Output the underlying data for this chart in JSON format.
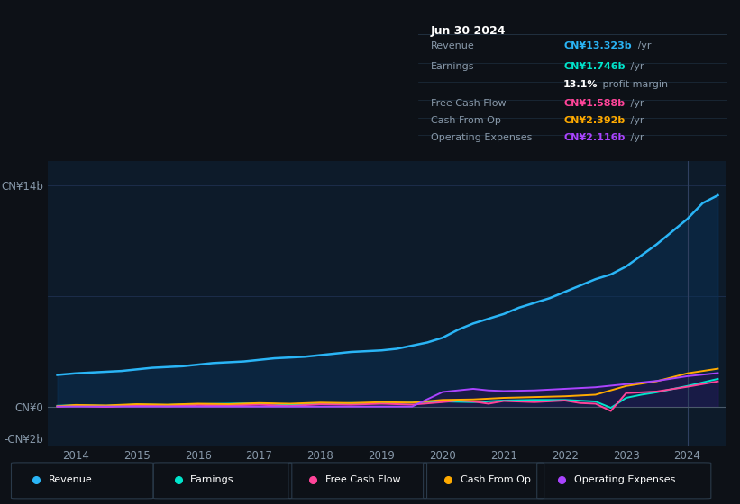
{
  "bg_color": "#0d1117",
  "plot_bg_color": "#0d1b2a",
  "grid_color": "#1e3050",
  "text_color": "#8899aa",
  "title_color": "#ffffff",
  "revenue_color": "#2ab5f6",
  "earnings_color": "#00e5cc",
  "fcf_color": "#ff4499",
  "cashfromop_color": "#ffaa00",
  "opex_color": "#aa44ff",
  "revenue_fill_color": "#0a3a5a",
  "opex_fill_color": "#2a1a4a",
  "legend_items": [
    {
      "label": "Revenue",
      "color": "#2ab5f6"
    },
    {
      "label": "Earnings",
      "color": "#00e5cc"
    },
    {
      "label": "Free Cash Flow",
      "color": "#ff4499"
    },
    {
      "label": "Cash From Op",
      "color": "#ffaa00"
    },
    {
      "label": "Operating Expenses",
      "color": "#aa44ff"
    }
  ],
  "xlabel_years": [
    2014,
    2015,
    2016,
    2017,
    2018,
    2019,
    2020,
    2021,
    2022,
    2023,
    2024
  ],
  "revenue": {
    "x": [
      2013.7,
      2014.0,
      2014.25,
      2014.5,
      2014.75,
      2015.0,
      2015.25,
      2015.5,
      2015.75,
      2016.0,
      2016.25,
      2016.5,
      2016.75,
      2017.0,
      2017.25,
      2017.5,
      2017.75,
      2018.0,
      2018.25,
      2018.5,
      2018.75,
      2019.0,
      2019.25,
      2019.5,
      2019.75,
      2020.0,
      2020.25,
      2020.5,
      2020.75,
      2021.0,
      2021.25,
      2021.5,
      2021.75,
      2022.0,
      2022.25,
      2022.5,
      2022.75,
      2023.0,
      2023.25,
      2023.5,
      2023.75,
      2024.0,
      2024.25,
      2024.5
    ],
    "y": [
      2.0,
      2.1,
      2.15,
      2.2,
      2.25,
      2.35,
      2.45,
      2.5,
      2.55,
      2.65,
      2.75,
      2.8,
      2.85,
      2.95,
      3.05,
      3.1,
      3.15,
      3.25,
      3.35,
      3.45,
      3.5,
      3.55,
      3.65,
      3.85,
      4.05,
      4.35,
      4.85,
      5.25,
      5.55,
      5.85,
      6.25,
      6.55,
      6.85,
      7.25,
      7.65,
      8.05,
      8.35,
      8.85,
      9.55,
      10.25,
      11.05,
      11.85,
      12.85,
      13.35
    ]
  },
  "earnings": {
    "x": [
      2013.7,
      2014.0,
      2014.5,
      2015.0,
      2015.5,
      2016.0,
      2016.5,
      2017.0,
      2017.5,
      2018.0,
      2018.5,
      2019.0,
      2019.5,
      2020.0,
      2020.5,
      2021.0,
      2021.5,
      2022.0,
      2022.5,
      2022.75,
      2023.0,
      2023.25,
      2023.5,
      2024.0,
      2024.5
    ],
    "y": [
      0.05,
      0.08,
      0.05,
      0.12,
      0.1,
      0.15,
      0.18,
      0.2,
      0.12,
      0.18,
      0.22,
      0.2,
      0.25,
      0.32,
      0.28,
      0.38,
      0.42,
      0.42,
      0.32,
      -0.08,
      0.55,
      0.75,
      0.9,
      1.3,
      1.746
    ]
  },
  "fcf": {
    "x": [
      2013.7,
      2014.0,
      2014.5,
      2015.0,
      2015.5,
      2016.0,
      2016.5,
      2017.0,
      2017.5,
      2018.0,
      2018.5,
      2019.0,
      2019.5,
      2020.0,
      2020.25,
      2020.5,
      2020.75,
      2021.0,
      2021.5,
      2022.0,
      2022.25,
      2022.5,
      2022.75,
      2023.0,
      2023.5,
      2024.0,
      2024.5
    ],
    "y": [
      0.0,
      0.05,
      -0.02,
      0.08,
      0.02,
      0.1,
      0.07,
      0.12,
      0.03,
      0.15,
      0.12,
      0.18,
      0.12,
      0.28,
      0.38,
      0.32,
      0.18,
      0.35,
      0.28,
      0.38,
      0.22,
      0.18,
      -0.28,
      0.85,
      0.95,
      1.25,
      1.588
    ]
  },
  "cashfromop": {
    "x": [
      2013.7,
      2014.0,
      2014.5,
      2015.0,
      2015.5,
      2016.0,
      2016.5,
      2017.0,
      2017.5,
      2018.0,
      2018.5,
      2019.0,
      2019.5,
      2020.0,
      2020.5,
      2021.0,
      2021.5,
      2022.0,
      2022.5,
      2023.0,
      2023.5,
      2024.0,
      2024.5
    ],
    "y": [
      0.02,
      0.1,
      0.07,
      0.15,
      0.12,
      0.18,
      0.15,
      0.22,
      0.18,
      0.25,
      0.22,
      0.28,
      0.25,
      0.42,
      0.45,
      0.55,
      0.6,
      0.65,
      0.75,
      1.3,
      1.6,
      2.1,
      2.392
    ]
  },
  "opex": {
    "x": [
      2013.7,
      2019.45,
      2019.5,
      2020.0,
      2020.25,
      2020.5,
      2020.75,
      2021.0,
      2021.5,
      2022.0,
      2022.5,
      2023.0,
      2023.5,
      2024.0,
      2024.5
    ],
    "y": [
      0.0,
      0.0,
      0.0,
      0.92,
      1.02,
      1.12,
      1.02,
      0.98,
      1.02,
      1.12,
      1.22,
      1.42,
      1.62,
      1.92,
      2.116
    ]
  }
}
